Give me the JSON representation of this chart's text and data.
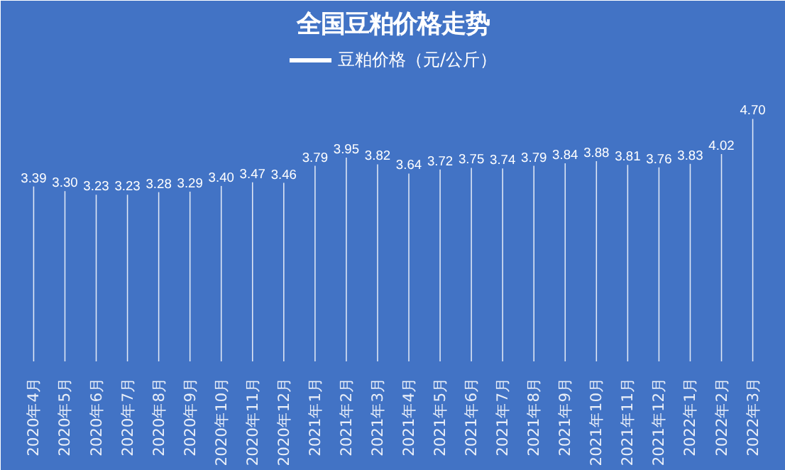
{
  "chart_data": {
    "type": "bar",
    "title": "全国豆粕价格走势",
    "categories": [
      "2020年4月",
      "2020年5月",
      "2020年6月",
      "2020年7月",
      "2020年8月",
      "2020年9月",
      "2020年10月",
      "2020年11月",
      "2020年12月",
      "2021年1月",
      "2021年2月",
      "2021年3月",
      "2021年4月",
      "2021年5月",
      "2021年6月",
      "2021年7月",
      "2021年8月",
      "2021年9月",
      "2021年10月",
      "2021年11月",
      "2021年12月",
      "2022年1月",
      "2022年2月",
      "2022年3月"
    ],
    "series": [
      {
        "name": "豆粕价格（元/公斤）",
        "color": "#ffffff",
        "values": [
          3.39,
          3.3,
          3.23,
          3.23,
          3.28,
          3.29,
          3.4,
          3.47,
          3.46,
          3.79,
          3.95,
          3.82,
          3.64,
          3.72,
          3.75,
          3.74,
          3.79,
          3.84,
          3.88,
          3.81,
          3.76,
          3.83,
          4.02,
          4.7
        ],
        "value_labels": [
          "3.39",
          "3.30",
          "3.23",
          "3.23",
          "3.28",
          "3.29",
          "3.40",
          "3.47",
          "3.46",
          "3.79",
          "3.95",
          "3.82",
          "3.64",
          "3.72",
          "3.75",
          "3.74",
          "3.79",
          "3.84",
          "3.88",
          "3.81",
          "3.76",
          "3.83",
          "4.02",
          "4.70"
        ]
      }
    ],
    "legend": "top",
    "tick_labels": "x"
  }
}
